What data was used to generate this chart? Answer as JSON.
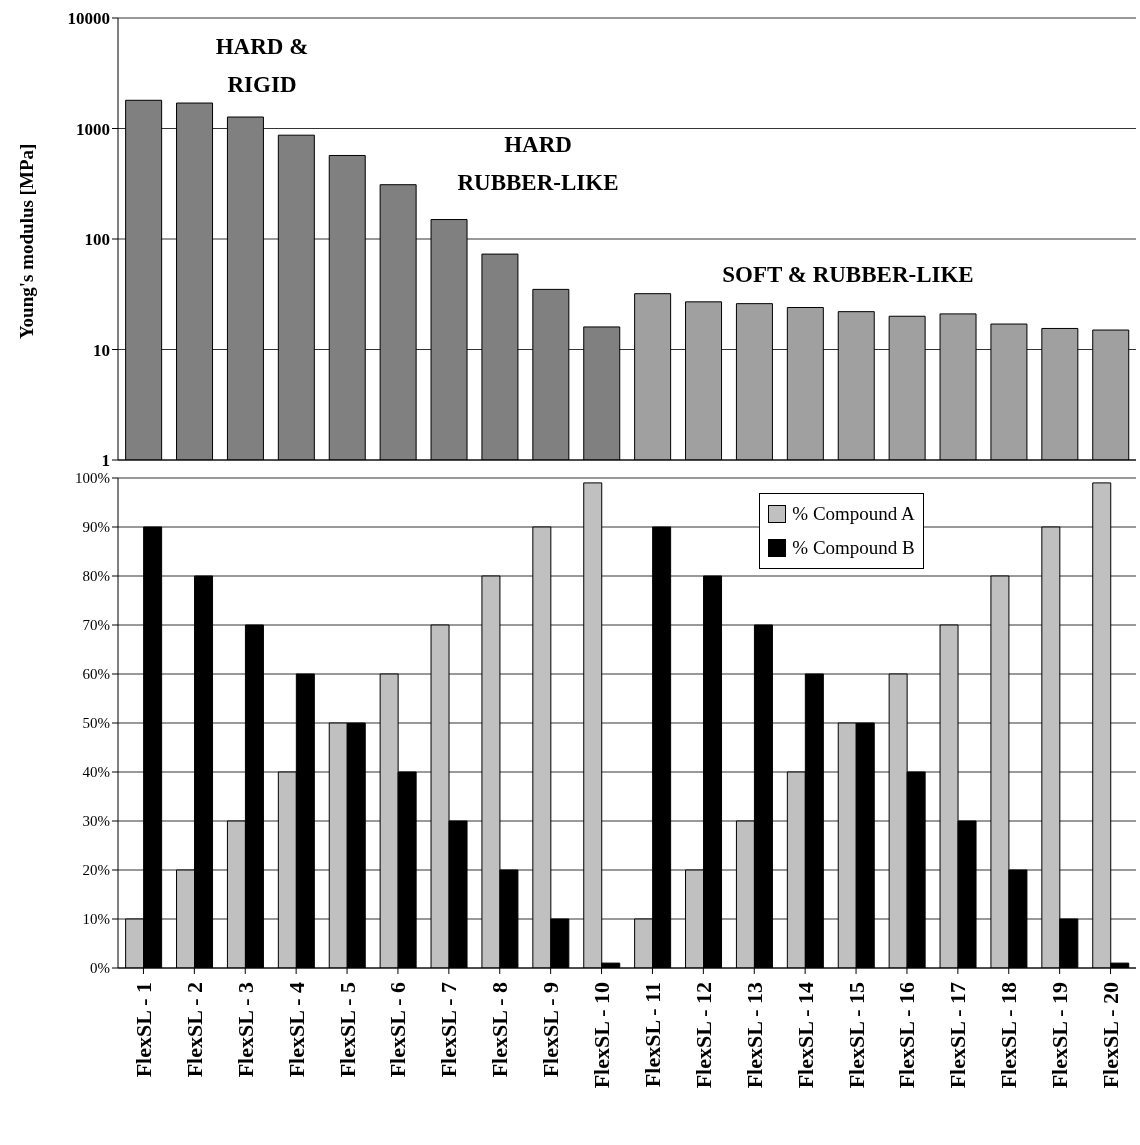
{
  "chart_data": [
    {
      "type": "bar",
      "ylabel": "Young's modulus [MPa]",
      "log": true,
      "categories": [
        null,
        null,
        null,
        null,
        null,
        null,
        null,
        null,
        null,
        null,
        null,
        null,
        null,
        null,
        null,
        null,
        null,
        null,
        null,
        null
      ],
      "values": [
        1800,
        1700,
        1270,
        870,
        570,
        310,
        150,
        73,
        35,
        16,
        32,
        27,
        26,
        24,
        22,
        20,
        21,
        17,
        15.5,
        15
      ],
      "colors": [
        "#808080",
        "#808080",
        "#808080",
        "#808080",
        "#808080",
        "#808080",
        "#808080",
        "#808080",
        "#808080",
        "#808080",
        "#a0a0a0",
        "#a0a0a0",
        "#a0a0a0",
        "#a0a0a0",
        "#a0a0a0",
        "#a0a0a0",
        "#a0a0a0",
        "#a0a0a0",
        "#a0a0a0",
        "#a0a0a0"
      ],
      "ylim": [
        1,
        10000
      ],
      "yticks": [
        1,
        10,
        100,
        1000,
        10000
      ],
      "grid": "y",
      "tick_labels": "y",
      "annotations": [
        "HARD & RIGID",
        "HARD RUBBER-LIKE",
        "SOFT & RUBBER-LIKE"
      ]
    },
    {
      "type": "bar",
      "categories": [
        "FlexSL - 1",
        "FlexSL - 2",
        "FlexSL - 3",
        "FlexSL - 4",
        "FlexSL - 5",
        "FlexSL - 6",
        "FlexSL - 7",
        "FlexSL - 8",
        "FlexSL - 9",
        "FlexSL - 10",
        "FlexSL - 11",
        "FlexSL - 12",
        "FlexSL - 13",
        "FlexSL - 14",
        "FlexSL - 15",
        "FlexSL - 16",
        "FlexSL - 17",
        "FlexSL - 18",
        "FlexSL - 19",
        "FlexSL - 20"
      ],
      "series": [
        {
          "name": "% Compound A",
          "color": "#c0c0c0",
          "values": [
            10,
            20,
            30,
            40,
            50,
            60,
            70,
            80,
            90,
            99,
            10,
            20,
            30,
            40,
            50,
            60,
            70,
            80,
            90,
            99
          ]
        },
        {
          "name": "% Compound B",
          "color": "#000000",
          "values": [
            90,
            80,
            70,
            60,
            50,
            40,
            30,
            20,
            10,
            1,
            90,
            80,
            70,
            60,
            50,
            40,
            30,
            20,
            10,
            1
          ]
        }
      ],
      "ylim": [
        0,
        100
      ],
      "yticks": [
        {
          "value": 0,
          "label": "0%"
        },
        {
          "value": 10,
          "label": "10%"
        },
        {
          "value": 20,
          "label": "20%"
        },
        {
          "value": 30,
          "label": "30%"
        },
        {
          "value": 40,
          "label": "40%"
        },
        {
          "value": 50,
          "label": "50%"
        },
        {
          "value": 60,
          "label": "60%"
        },
        {
          "value": 70,
          "label": "70%"
        },
        {
          "value": 80,
          "label": "80%"
        },
        {
          "value": 90,
          "label": "90%"
        },
        {
          "value": 100,
          "label": "100%"
        }
      ],
      "grid": "y",
      "legend": "top right"
    }
  ]
}
